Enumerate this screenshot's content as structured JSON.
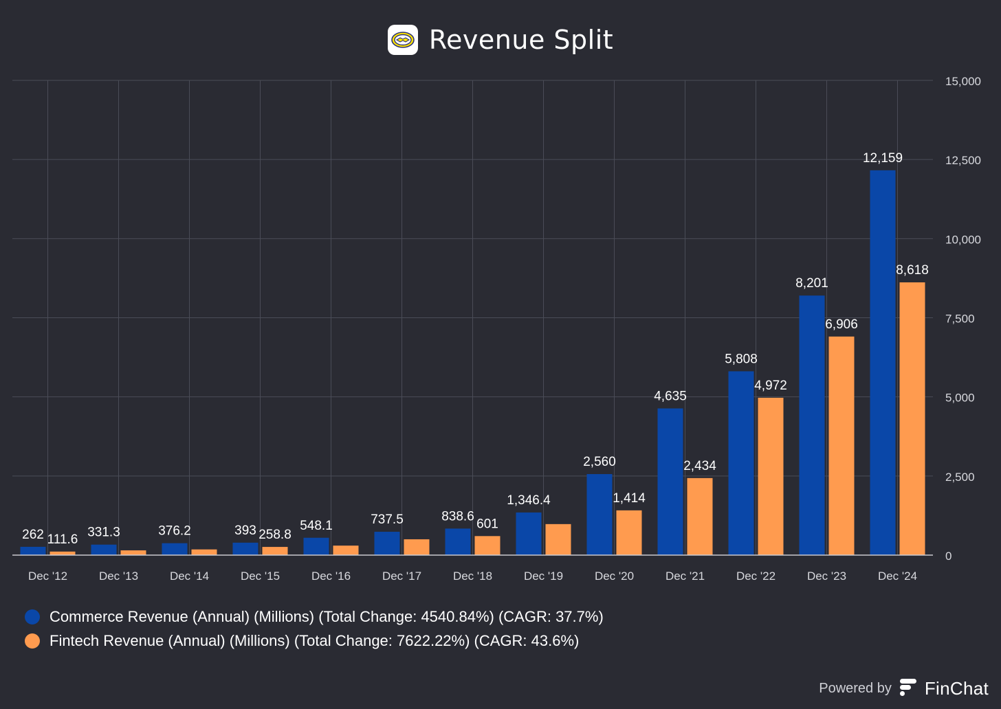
{
  "title": "Revenue Split",
  "footer": {
    "powered_by": "Powered by",
    "brand": "FinChat"
  },
  "colors": {
    "background": "#2a2b33",
    "commerce": "#0a47a8",
    "fintech": "#ff9b4f",
    "grid": "#4a4c57"
  },
  "chart_data": {
    "type": "bar",
    "categories": [
      "Dec '12",
      "Dec '13",
      "Dec '14",
      "Dec '15",
      "Dec '16",
      "Dec '17",
      "Dec '18",
      "Dec '19",
      "Dec '20",
      "Dec '21",
      "Dec '22",
      "Dec '23",
      "Dec '24"
    ],
    "series": [
      {
        "name": "Commerce Revenue (Annual) (Millions) (Total Change: 4540.84%) (CAGR: 37.7%)",
        "color": "#0a47a8",
        "values": [
          262,
          331.3,
          376.2,
          393,
          548.1,
          737.5,
          838.6,
          1346.4,
          2560,
          4635,
          5808,
          8201,
          12159
        ],
        "labels": [
          "262",
          "331.3",
          "376.2",
          "393",
          "548.1",
          "737.5",
          "838.6",
          "1,346.4",
          "2,560",
          "4,635",
          "5,808",
          "8,201",
          "12,159"
        ]
      },
      {
        "name": "Fintech Revenue (Annual) (Millions) (Total Change: 7622.22%) (CAGR: 43.6%)",
        "color": "#ff9b4f",
        "values": [
          111.6,
          150,
          180,
          258.8,
          300,
          500,
          601,
          980,
          1414,
          2434,
          4972,
          6906,
          8618
        ],
        "labels": [
          "111.6",
          "",
          "",
          "258.8",
          "",
          "",
          "601",
          "",
          "1,414",
          "2,434",
          "4,972",
          "6,906",
          "8,618"
        ]
      }
    ],
    "y_ticks": [
      "0",
      "2,500",
      "5,000",
      "7,500",
      "10,000",
      "12,500",
      "15,000"
    ],
    "ylim": [
      0,
      15000
    ],
    "y_axis_side": "right",
    "grid": true,
    "legend_position": "bottom-left"
  }
}
